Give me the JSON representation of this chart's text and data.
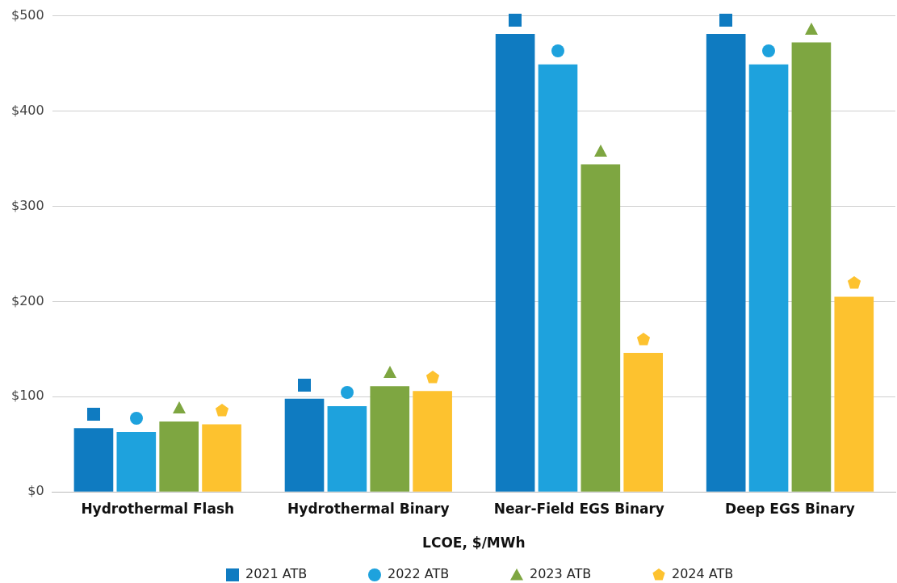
{
  "chart_data": {
    "type": "bar",
    "xlabel": "LCOE, $/MWh",
    "categories": [
      "Hydrothermal Flash",
      "Hydrothermal Binary",
      "Near-Field EGS Binary",
      "Deep EGS Binary"
    ],
    "series": [
      {
        "name": "2021 ATB",
        "color": "#0f7bc1",
        "marker": "square",
        "values": [
          67,
          98,
          481,
          481
        ]
      },
      {
        "name": "2022 ATB",
        "color": "#1ea2dd",
        "marker": "circle",
        "values": [
          63,
          90,
          449,
          449
        ]
      },
      {
        "name": "2023 ATB",
        "color": "#7ea641",
        "marker": "triangle",
        "values": [
          74,
          111,
          344,
          472
        ]
      },
      {
        "name": "2024 ATB",
        "color": "#fdc22f",
        "marker": "pentagon",
        "values": [
          71,
          106,
          146,
          205
        ]
      }
    ],
    "ylim": [
      0,
      500
    ],
    "yticks": [
      {
        "value": 0,
        "label": "$0"
      },
      {
        "value": 100,
        "label": "$100"
      },
      {
        "value": 200,
        "label": "$200"
      },
      {
        "value": 300,
        "label": "$300"
      },
      {
        "value": 400,
        "label": "$400"
      },
      {
        "value": 500,
        "label": "$500"
      }
    ],
    "grid": "y",
    "legend": "bottom"
  }
}
